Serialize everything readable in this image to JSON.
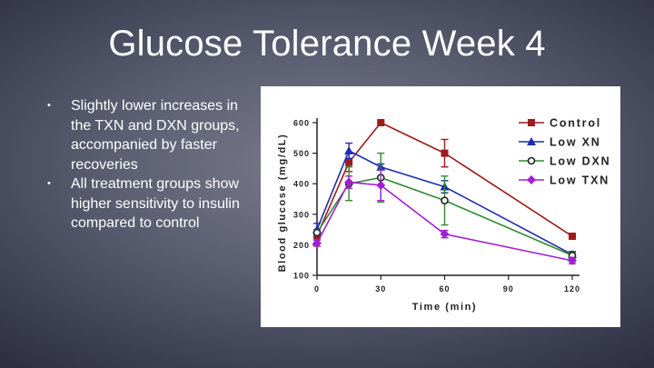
{
  "slide": {
    "title": "Glucose Tolerance Week 4",
    "bullets": [
      "Slightly lower increases in the TXN and DXN groups, accompanied by faster recoveries",
      "All treatment groups show higher sensitivity to insulin compared to control"
    ],
    "bullet_marker": "•"
  },
  "chart_data": {
    "type": "line",
    "xlabel": "Time (min)",
    "ylabel": "Blood glucose (mg/dL)",
    "xlim": [
      0,
      120
    ],
    "ylim": [
      100,
      600
    ],
    "xticks": [
      0,
      30,
      60,
      90,
      120
    ],
    "yticks": [
      100,
      200,
      300,
      400,
      500,
      600
    ],
    "legend_position": "top-right",
    "series": [
      {
        "name": "Control",
        "color": "#9b1c1c",
        "marker": "square",
        "x": [
          0,
          15,
          30,
          60,
          120
        ],
        "y": [
          230,
          470,
          600,
          500,
          228
        ],
        "err": [
          10,
          30,
          5,
          45,
          8
        ]
      },
      {
        "name": "Low XN",
        "color": "#1f2db0",
        "marker": "triangle",
        "x": [
          0,
          15,
          30,
          60,
          120
        ],
        "y": [
          250,
          508,
          455,
          390,
          168
        ],
        "err": [
          20,
          25,
          10,
          20,
          10
        ]
      },
      {
        "name": "Low DXN",
        "color": "#2e8b2e",
        "marker": "circle",
        "x": [
          0,
          15,
          30,
          60,
          120
        ],
        "y": [
          240,
          400,
          420,
          345,
          165
        ],
        "err": [
          10,
          55,
          80,
          80,
          10
        ]
      },
      {
        "name": "Low TXN",
        "color": "#a020d0",
        "marker": "diamond",
        "x": [
          0,
          15,
          30,
          60,
          120
        ],
        "y": [
          205,
          405,
          395,
          235,
          148
        ],
        "err": [
          10,
          20,
          50,
          12,
          10
        ]
      }
    ]
  }
}
